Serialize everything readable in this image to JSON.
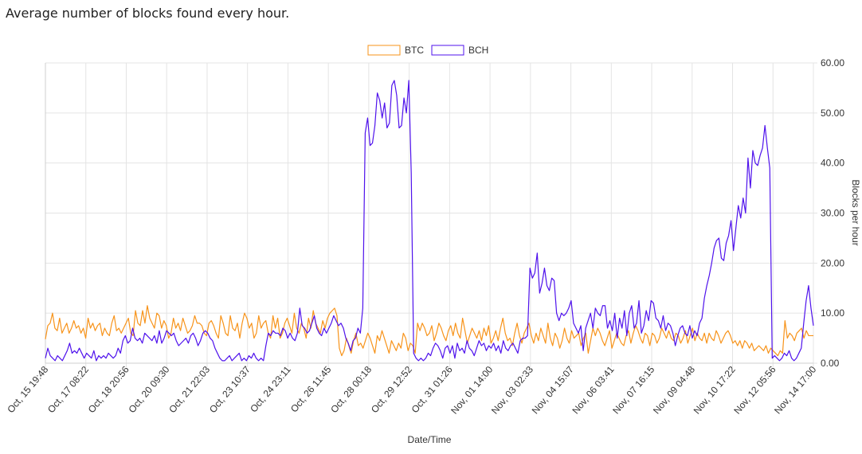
{
  "page": {
    "title": "Average number of blocks found every hour."
  },
  "chart_data": {
    "type": "line",
    "xlabel": "Date/Time",
    "ylabel": "Blocks per hour",
    "ylim": [
      0,
      60
    ],
    "y_ticks": [
      "0.00",
      "10.00",
      "20.00",
      "30.00",
      "40.00",
      "50.00",
      "60.00"
    ],
    "x_tick_labels": [
      "Oct, 15 19:48",
      "Oct, 17 08:22",
      "Oct, 18 20:56",
      "Oct, 20 09:30",
      "Oct, 21 22:03",
      "Oct, 23 10:37",
      "Oct, 24 23:11",
      "Oct, 26 11:45",
      "Oct, 28 00:18",
      "Oct, 29 12:52",
      "Oct, 31 01:26",
      "Nov, 01 14:00",
      "Nov, 03 02:33",
      "Nov, 04 15:07",
      "Nov, 06 03:41",
      "Nov, 07 16:15",
      "Nov, 09 04:48",
      "Nov, 10 17:22",
      "Nov, 12 05:56",
      "Nov, 14 17:00"
    ],
    "legend_position": "top-center",
    "grid": true,
    "series": [
      {
        "name": "BTC",
        "color": "#f7931a",
        "values": [
          4.8,
          7.5,
          8.0,
          10.0,
          7.0,
          6.5,
          9.0,
          6.0,
          7.0,
          8.0,
          6.0,
          7.0,
          8.5,
          7.0,
          7.5,
          6.0,
          7.0,
          5.0,
          9.0,
          7.0,
          8.0,
          6.5,
          7.5,
          8.0,
          5.5,
          7.0,
          6.0,
          5.5,
          8.0,
          9.5,
          6.5,
          7.0,
          6.0,
          7.0,
          8.0,
          9.0,
          6.0,
          5.5,
          10.5,
          8.0,
          7.5,
          10.5,
          8.0,
          11.5,
          9.0,
          8.0,
          7.0,
          10.0,
          9.5,
          7.0,
          8.5,
          7.5,
          5.0,
          6.0,
          9.0,
          7.0,
          8.0,
          6.5,
          9.0,
          7.5,
          6.0,
          6.5,
          7.5,
          9.5,
          8.0,
          8.0,
          7.5,
          6.0,
          5.5,
          8.0,
          8.5,
          7.5,
          6.0,
          5.0,
          9.5,
          8.0,
          6.0,
          5.5,
          9.5,
          7.0,
          6.5,
          8.0,
          5.0,
          8.0,
          10.0,
          9.0,
          7.0,
          8.0,
          5.0,
          6.0,
          9.5,
          7.0,
          8.0,
          8.5,
          6.0,
          5.0,
          9.5,
          7.0,
          9.0,
          5.0,
          6.0,
          8.0,
          9.0,
          7.5,
          6.0,
          10.0,
          7.0,
          6.0,
          8.0,
          7.0,
          5.0,
          9.0,
          7.0,
          10.5,
          8.0,
          7.0,
          6.0,
          8.5,
          7.0,
          9.0,
          10.0,
          10.5,
          11.0,
          9.5,
          3.0,
          1.5,
          2.5,
          5.0,
          3.5,
          2.0,
          4.5,
          6.0,
          3.5,
          4.0,
          3.0,
          4.5,
          6.0,
          5.0,
          3.5,
          2.0,
          5.5,
          4.5,
          6.5,
          5.0,
          3.5,
          2.0,
          4.5,
          3.5,
          2.5,
          4.0,
          3.0,
          6.0,
          5.0,
          2.5,
          4.0,
          3.5,
          2.0,
          8.0,
          6.5,
          8.0,
          7.0,
          5.5,
          6.0,
          7.5,
          4.5,
          6.0,
          8.0,
          7.0,
          5.5,
          4.5,
          6.5,
          7.5,
          5.5,
          8.0,
          6.0,
          5.0,
          9.0,
          6.5,
          4.0,
          5.5,
          7.0,
          6.0,
          5.0,
          6.5,
          4.5,
          7.0,
          5.5,
          7.5,
          4.0,
          5.0,
          6.5,
          4.5,
          7.0,
          9.0,
          6.0,
          4.5,
          5.0,
          3.5,
          6.0,
          8.0,
          5.5,
          4.0,
          6.0,
          7.0,
          8.0,
          5.5,
          4.0,
          6.0,
          4.5,
          7.0,
          5.5,
          4.0,
          8.0,
          5.0,
          3.5,
          6.0,
          5.0,
          3.0,
          4.5,
          7.0,
          5.0,
          4.0,
          6.5,
          5.0,
          5.5,
          6.0,
          3.5,
          5.0,
          6.0,
          2.0,
          4.5,
          7.0,
          5.5,
          7.0,
          6.0,
          4.5,
          3.5,
          5.0,
          6.5,
          3.0,
          4.5,
          6.0,
          5.0,
          4.0,
          3.5,
          5.5,
          6.5,
          4.0,
          6.0,
          7.5,
          6.5,
          5.0,
          4.0,
          6.0,
          5.5,
          3.5,
          6.0,
          5.5,
          4.0,
          5.0,
          7.0,
          6.0,
          5.0,
          6.5,
          5.0,
          4.5,
          6.0,
          5.5,
          4.0,
          5.0,
          6.5,
          4.0,
          5.5,
          7.0,
          4.5,
          6.0,
          5.0,
          4.5,
          6.0,
          4.0,
          6.0,
          5.0,
          4.5,
          6.5,
          5.5,
          4.0,
          5.0,
          6.0,
          6.5,
          5.5,
          4.0,
          4.5,
          3.5,
          4.5,
          3.0,
          4.5,
          4.0,
          3.0,
          4.0,
          2.5,
          3.0,
          3.5,
          3.0,
          2.5,
          3.5,
          2.0,
          3.0,
          2.5,
          2.0,
          1.5,
          2.5,
          2.0,
          8.5,
          5.0,
          6.0,
          5.5,
          4.5,
          6.0,
          6.5,
          7.0,
          5.0,
          6.5,
          5.5,
          5.5,
          5.5
        ]
      },
      {
        "name": "BCH",
        "color": "#4f12ec",
        "values": [
          1.0,
          3.0,
          1.5,
          1.0,
          0.5,
          1.5,
          1.0,
          0.5,
          1.5,
          2.5,
          4.0,
          2.0,
          2.5,
          2.0,
          3.0,
          2.0,
          1.0,
          2.0,
          1.5,
          1.0,
          2.5,
          0.5,
          1.5,
          1.0,
          1.5,
          1.0,
          2.0,
          1.5,
          1.0,
          1.5,
          3.0,
          2.0,
          4.5,
          5.5,
          4.0,
          4.5,
          7.0,
          5.0,
          4.5,
          5.0,
          4.0,
          6.0,
          5.5,
          5.0,
          4.5,
          5.5,
          4.0,
          6.5,
          4.0,
          5.0,
          6.5,
          6.0,
          5.5,
          6.0,
          4.5,
          3.5,
          4.0,
          4.5,
          5.0,
          4.0,
          5.5,
          6.0,
          5.0,
          3.5,
          4.5,
          6.0,
          6.5,
          6.0,
          5.0,
          4.5,
          3.0,
          2.0,
          1.0,
          0.5,
          0.5,
          1.0,
          1.5,
          0.5,
          1.0,
          1.5,
          2.0,
          0.5,
          1.0,
          0.5,
          1.5,
          1.0,
          2.0,
          1.0,
          0.5,
          1.0,
          0.5,
          3.5,
          6.0,
          5.5,
          6.5,
          6.0,
          6.0,
          5.5,
          7.0,
          6.5,
          5.0,
          6.0,
          5.0,
          4.5,
          6.0,
          11.0,
          7.5,
          7.0,
          6.0,
          6.5,
          8.0,
          9.5,
          7.0,
          6.0,
          5.5,
          7.0,
          6.0,
          7.0,
          8.0,
          9.5,
          8.5,
          7.5,
          8.0,
          7.0,
          5.0,
          4.0,
          2.5,
          4.5,
          5.0,
          7.0,
          6.0,
          11.0,
          46.0,
          49.0,
          43.5,
          44.0,
          47.5,
          54.0,
          52.5,
          49.0,
          52.0,
          47.0,
          48.0,
          55.5,
          56.5,
          53.5,
          47.0,
          47.5,
          53.0,
          50.0,
          56.5,
          38.0,
          2.0,
          1.0,
          0.5,
          1.0,
          0.5,
          1.0,
          2.0,
          1.5,
          3.0,
          4.0,
          3.5,
          2.5,
          1.0,
          3.0,
          3.5,
          2.0,
          3.5,
          1.0,
          4.0,
          2.5,
          3.0,
          2.0,
          4.5,
          3.0,
          2.5,
          1.5,
          3.0,
          4.5,
          3.5,
          4.0,
          2.5,
          3.5,
          3.0,
          4.0,
          2.5,
          3.5,
          2.0,
          4.5,
          3.0,
          2.5,
          3.5,
          4.0,
          3.0,
          2.0,
          4.5,
          5.0,
          5.0,
          5.5,
          19.0,
          17.0,
          18.0,
          22.0,
          14.0,
          16.0,
          19.0,
          15.5,
          14.5,
          17.0,
          16.5,
          10.0,
          8.5,
          10.0,
          9.5,
          10.0,
          11.0,
          12.5,
          8.0,
          7.0,
          6.0,
          7.5,
          2.5,
          7.0,
          8.5,
          10.0,
          7.0,
          11.0,
          10.0,
          9.5,
          11.5,
          11.5,
          7.0,
          8.5,
          6.5,
          10.0,
          5.0,
          9.0,
          7.0,
          10.5,
          5.5,
          10.0,
          11.5,
          7.0,
          8.0,
          12.5,
          6.0,
          7.5,
          10.5,
          8.5,
          12.5,
          12.0,
          9.0,
          8.5,
          7.0,
          9.5,
          6.5,
          8.0,
          7.5,
          6.0,
          3.5,
          5.5,
          7.0,
          7.5,
          6.0,
          5.5,
          7.5,
          5.0,
          6.5,
          5.5,
          8.0,
          9.0,
          13.0,
          15.5,
          17.5,
          20.0,
          23.0,
          24.5,
          25.0,
          21.0,
          20.5,
          24.0,
          25.5,
          28.5,
          22.5,
          27.0,
          31.5,
          29.0,
          33.0,
          30.0,
          41.0,
          35.0,
          42.5,
          40.0,
          39.5,
          41.5,
          43.0,
          47.5,
          43.0,
          39.0,
          1.0,
          1.5,
          1.0,
          0.5,
          1.0,
          2.0,
          1.5,
          2.5,
          1.0,
          0.5,
          1.0,
          2.0,
          3.0,
          8.0,
          12.5,
          15.5,
          11.0,
          7.5
        ]
      }
    ]
  }
}
